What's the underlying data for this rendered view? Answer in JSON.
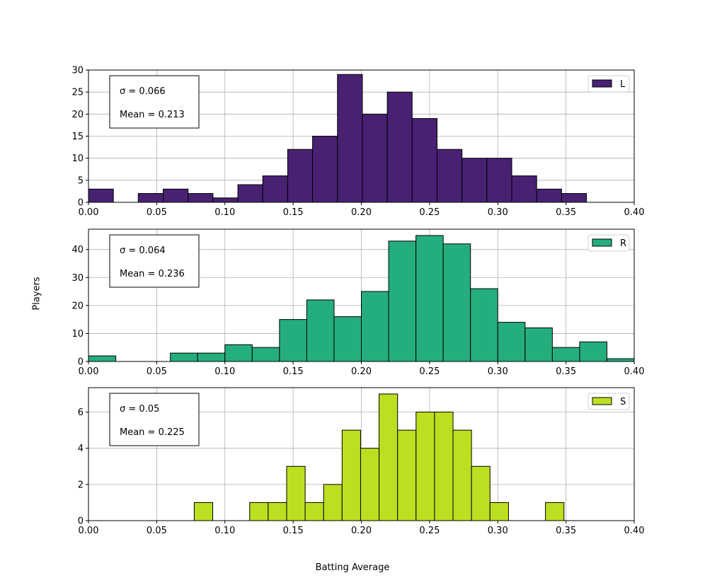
{
  "figure": {
    "ylabel": "Players",
    "xlabel": "Batting Average"
  },
  "chart_data": [
    {
      "type": "bar",
      "legend": "L",
      "color": "#482173",
      "stats": {
        "sigma": "σ = 0.066",
        "mean": "Mean = 0.213"
      },
      "xlim": [
        0.0,
        0.4
      ],
      "ylim": [
        0,
        30
      ],
      "xticks": [
        "0.00",
        "0.05",
        "0.10",
        "0.15",
        "0.20",
        "0.25",
        "0.30",
        "0.35",
        "0.40"
      ],
      "yticks": [
        "0",
        "5",
        "10",
        "15",
        "20",
        "25",
        "30"
      ],
      "yticks_values": [
        0,
        5,
        10,
        15,
        20,
        25,
        30
      ],
      "bin_start": 0.0,
      "bin_width": 0.01825,
      "values": [
        3,
        0,
        2,
        3,
        2,
        1,
        4,
        6,
        12,
        15,
        29,
        20,
        25,
        19,
        12,
        10,
        10,
        6,
        3,
        2
      ],
      "grid": true,
      "legend_position": "top-right"
    },
    {
      "type": "bar",
      "legend": "R",
      "color": "#25ae7d",
      "stats": {
        "sigma": "σ = 0.064",
        "mean": "Mean = 0.236"
      },
      "xlim": [
        0.0,
        0.4
      ],
      "ylim": [
        0,
        47.25
      ],
      "xticks": [
        "0.00",
        "0.05",
        "0.10",
        "0.15",
        "0.20",
        "0.25",
        "0.30",
        "0.35",
        "0.40"
      ],
      "yticks": [
        "0",
        "10",
        "20",
        "30",
        "40"
      ],
      "yticks_values": [
        0,
        10,
        20,
        30,
        40
      ],
      "bin_start": 0.0,
      "bin_width": 0.02,
      "values": [
        2,
        0,
        0,
        3,
        3,
        6,
        5,
        15,
        22,
        16,
        25,
        43,
        45,
        42,
        26,
        14,
        12,
        5,
        7,
        1
      ],
      "grid": true,
      "legend_position": "top-right"
    },
    {
      "type": "bar",
      "legend": "S",
      "color": "#bcdf21",
      "stats": {
        "sigma": "σ = 0.05",
        "mean": "Mean = 0.225"
      },
      "xlim": [
        0.0,
        0.4
      ],
      "ylim": [
        0,
        7.35
      ],
      "xticks": [
        "0.00",
        "0.05",
        "0.10",
        "0.15",
        "0.20",
        "0.25",
        "0.30",
        "0.35",
        "0.40"
      ],
      "yticks": [
        "0",
        "2",
        "4",
        "6"
      ],
      "yticks_values": [
        0,
        2,
        4,
        6
      ],
      "bin_start": 0.0775,
      "bin_width": 0.01355,
      "values": [
        1,
        0,
        0,
        1,
        1,
        3,
        1,
        2,
        5,
        4,
        7,
        5,
        6,
        6,
        5,
        3,
        1,
        0,
        0,
        1
      ],
      "grid": true,
      "legend_position": "top-right"
    }
  ]
}
